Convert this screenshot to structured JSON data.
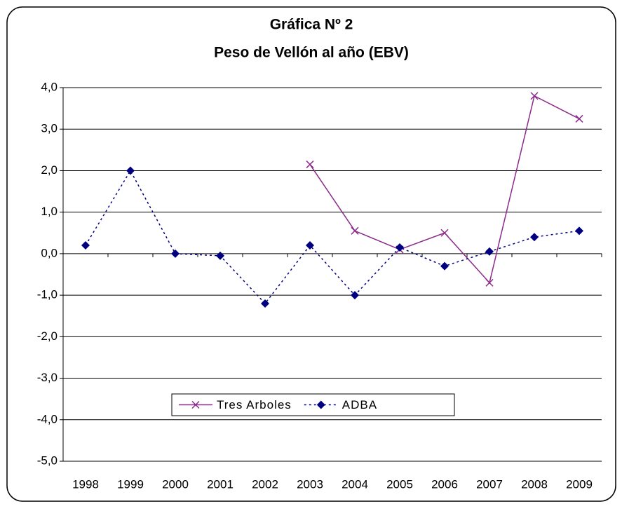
{
  "chart_data": {
    "type": "line",
    "title": "Gráfica Nº 2",
    "subtitle": "Peso de Vellón al año (EBV)",
    "categories": [
      "1998",
      "1999",
      "2000",
      "2001",
      "2002",
      "2003",
      "2004",
      "2005",
      "2006",
      "2007",
      "2008",
      "2009"
    ],
    "series": [
      {
        "name": "Tres Arboles",
        "color": "#8b2a8b",
        "marker": "x",
        "dash": "solid",
        "values": [
          null,
          null,
          null,
          null,
          null,
          2.15,
          0.55,
          0.1,
          0.5,
          -0.7,
          3.8,
          3.25
        ]
      },
      {
        "name": "ADBA",
        "color": "#000080",
        "marker": "diamond",
        "dash": "dotted",
        "values": [
          0.2,
          2.0,
          0.0,
          -0.05,
          -1.2,
          0.2,
          -1.0,
          0.15,
          -0.3,
          0.05,
          0.4,
          0.55
        ]
      }
    ],
    "ylim": [
      -5,
      4
    ],
    "yticks": [
      {
        "value": 4,
        "label": "4,0"
      },
      {
        "value": 3,
        "label": "3,0"
      },
      {
        "value": 2,
        "label": "2,0"
      },
      {
        "value": 1,
        "label": "1,0"
      },
      {
        "value": 0,
        "label": "0,0"
      },
      {
        "value": -1,
        "label": "-1,0"
      },
      {
        "value": -2,
        "label": "-2,0"
      },
      {
        "value": -3,
        "label": "-3,0"
      },
      {
        "value": -4,
        "label": "-4,0"
      },
      {
        "value": -5,
        "label": "-5,0"
      }
    ],
    "grid": true,
    "legend": "bottom"
  }
}
